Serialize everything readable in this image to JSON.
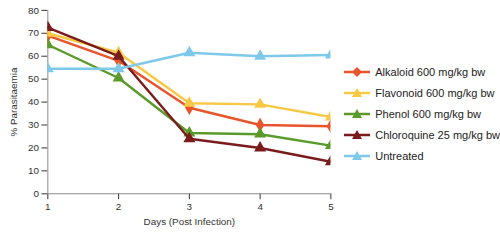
{
  "chart_data": {
    "type": "line",
    "x_label": "Days (Post Infection)",
    "y_label": "% Parasitaemia",
    "x": [
      1,
      2,
      3,
      4,
      5
    ],
    "xlim": [
      1,
      5
    ],
    "xticks": [
      1,
      2,
      3,
      4,
      5
    ],
    "ylim": [
      0,
      80
    ],
    "yticks": [
      0,
      10,
      20,
      30,
      40,
      50,
      60,
      70,
      80
    ],
    "grid": false,
    "legend": "right",
    "series": [
      {
        "name": "Alkaloid 600 mg/kg bw",
        "color": "#e8542b",
        "marker": "diamond",
        "values": [
          69,
          58,
          37.5,
          30,
          29.5
        ]
      },
      {
        "name": "Flavonoid 600 mg/kg bw",
        "color": "#f7c844",
        "marker": "triangle",
        "values": [
          70,
          61.5,
          39.5,
          39,
          33.5
        ]
      },
      {
        "name": "Phenol 600 mg/kg bw",
        "color": "#5a9a2a",
        "marker": "triangle",
        "values": [
          65,
          50.5,
          26.5,
          26,
          21
        ]
      },
      {
        "name": "Chloroquine 25 mg/kg bw",
        "color": "#7a1c1c",
        "marker": "triangle",
        "values": [
          72.5,
          60,
          24,
          20,
          14
        ]
      },
      {
        "name": "Untreated",
        "color": "#7ec8ea",
        "marker": "triangle",
        "values": [
          54.5,
          54.5,
          61.5,
          60,
          60.5
        ]
      }
    ]
  }
}
